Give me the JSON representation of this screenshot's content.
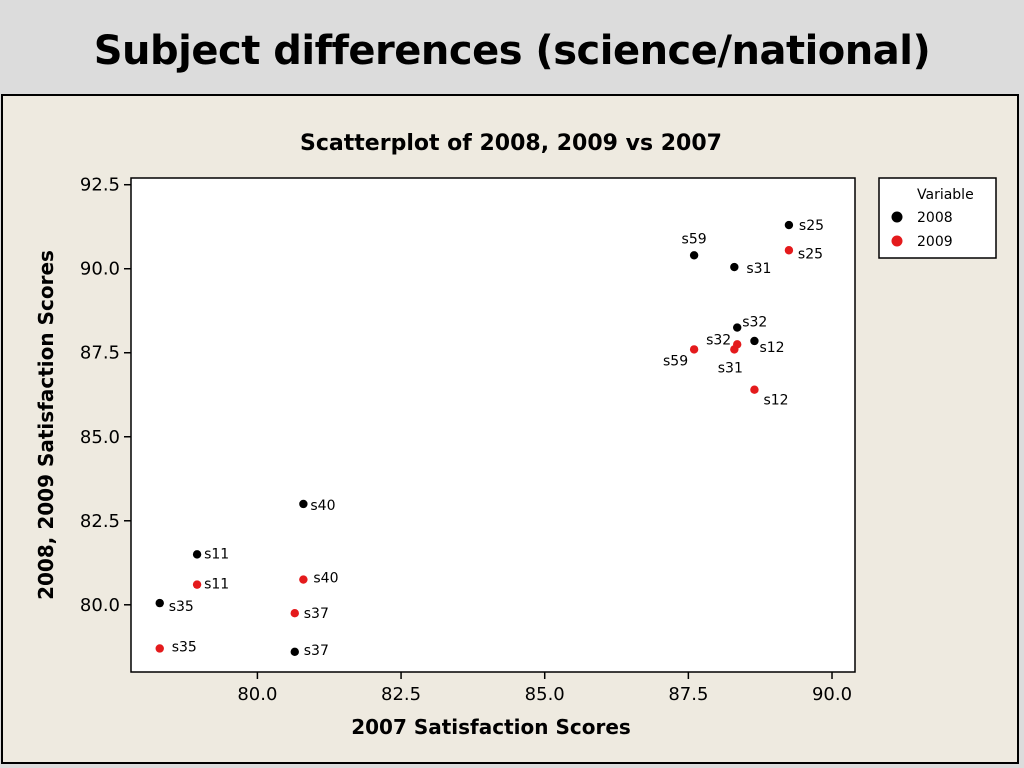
{
  "slide": {
    "title": "Subject differences (science/national)"
  },
  "colors": {
    "series_2008": "#000000",
    "series_2009": "#e41a1c"
  },
  "chart_data": {
    "type": "scatter",
    "title": "Scatterplot of 2008, 2009 vs 2007",
    "xlabel": "2007 Satisfaction Scores",
    "ylabel": "2008, 2009 Satisfaction Scores",
    "xlim": [
      77.8,
      90.4
    ],
    "ylim": [
      78.0,
      92.7
    ],
    "xticks": [
      "80.0",
      "82.5",
      "85.0",
      "87.5",
      "90.0"
    ],
    "xtick_values": [
      80.0,
      82.5,
      85.0,
      87.5,
      90.0
    ],
    "yticks": [
      "80.0",
      "82.5",
      "85.0",
      "87.5",
      "90.0",
      "92.5"
    ],
    "ytick_values": [
      80.0,
      82.5,
      85.0,
      87.5,
      90.0,
      92.5
    ],
    "grid": false,
    "legend": {
      "title": "Variable",
      "position": "right"
    },
    "series": [
      {
        "name": "2008",
        "color": "#000000",
        "points": [
          {
            "x": 89.25,
            "y": 91.3,
            "label": "s25"
          },
          {
            "x": 87.6,
            "y": 90.4,
            "label": "s59"
          },
          {
            "x": 88.3,
            "y": 90.05,
            "label": "s31"
          },
          {
            "x": 88.35,
            "y": 88.25,
            "label": "s32"
          },
          {
            "x": 88.65,
            "y": 87.85,
            "label": "s12"
          },
          {
            "x": 80.8,
            "y": 83.0,
            "label": "s40"
          },
          {
            "x": 78.95,
            "y": 81.5,
            "label": "s11"
          },
          {
            "x": 78.3,
            "y": 80.05,
            "label": "s35"
          },
          {
            "x": 80.65,
            "y": 78.6,
            "label": "s37"
          }
        ]
      },
      {
        "name": "2009",
        "color": "#e41a1c",
        "points": [
          {
            "x": 89.25,
            "y": 90.55,
            "label": "s25"
          },
          {
            "x": 88.35,
            "y": 87.75,
            "label": "s32"
          },
          {
            "x": 87.6,
            "y": 87.6,
            "label": "s59"
          },
          {
            "x": 88.3,
            "y": 87.6,
            "label": "s31"
          },
          {
            "x": 88.65,
            "y": 86.4,
            "label": "s12"
          },
          {
            "x": 80.8,
            "y": 80.75,
            "label": "s40"
          },
          {
            "x": 78.95,
            "y": 80.6,
            "label": "s11"
          },
          {
            "x": 80.65,
            "y": 79.75,
            "label": "s37"
          },
          {
            "x": 78.3,
            "y": 78.7,
            "label": "s35"
          }
        ]
      }
    ]
  }
}
